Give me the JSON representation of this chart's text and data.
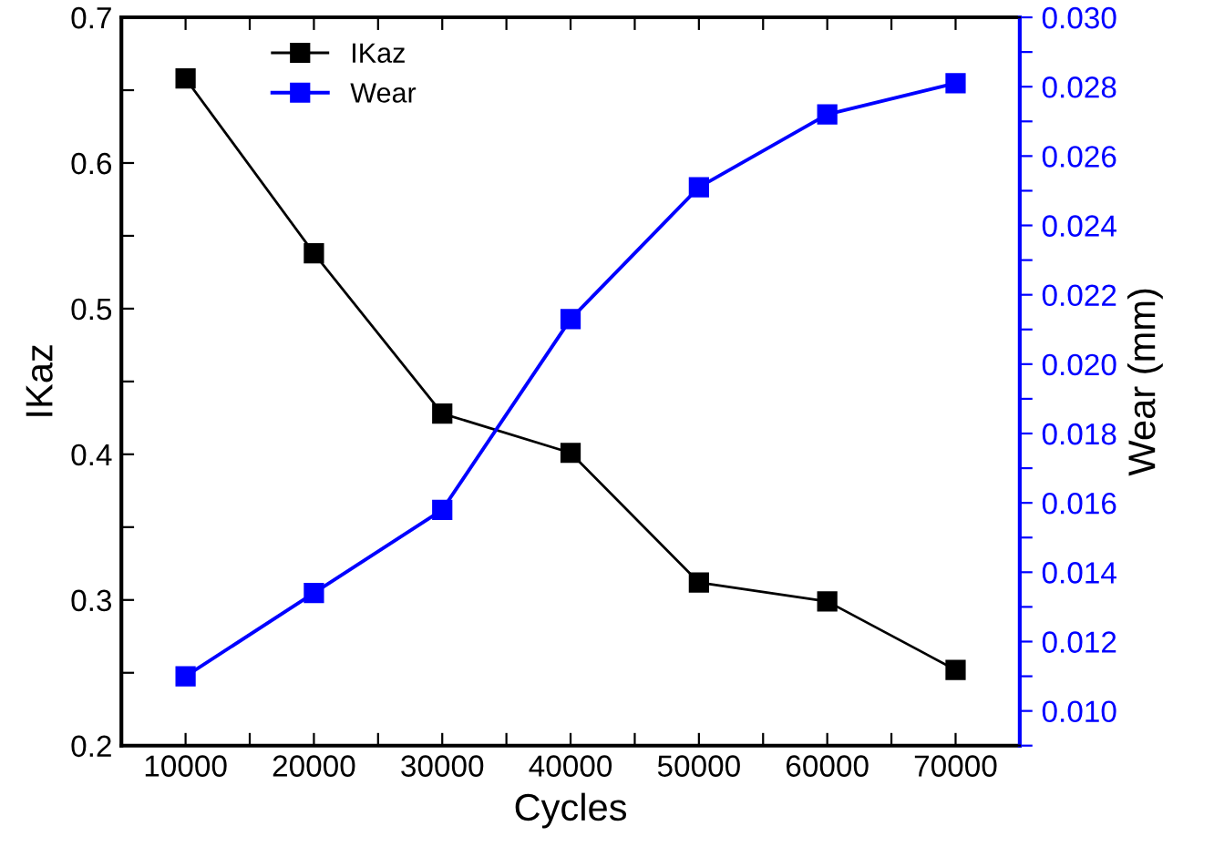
{
  "chart_data": {
    "type": "line",
    "xlabel": "Cycles",
    "ylabel": "IKaz",
    "y2label": "Wear (mm)",
    "x": [
      10000,
      20000,
      30000,
      40000,
      50000,
      60000,
      70000
    ],
    "series": [
      {
        "name": "IKaz",
        "color": "#000000",
        "values": [
          0.658,
          0.538,
          0.428,
          0.401,
          0.312,
          0.299,
          0.252
        ]
      },
      {
        "name": "Wear",
        "color": "#0000ff",
        "axis": "y2",
        "values": [
          0.011,
          0.0134,
          0.0158,
          0.0213,
          0.0251,
          0.0272,
          0.0281
        ]
      }
    ],
    "xlim": [
      5000,
      75000
    ],
    "xticks": [
      {
        "value": 5000,
        "label": null
      },
      10000,
      {
        "value": 15000,
        "label": null
      },
      20000,
      {
        "value": 25000,
        "label": null
      },
      30000,
      {
        "value": 35000,
        "label": null
      },
      40000,
      {
        "value": 45000,
        "label": null
      },
      50000,
      {
        "value": 55000,
        "label": null
      },
      60000,
      {
        "value": 65000,
        "label": null
      },
      70000,
      {
        "value": 75000,
        "label": null
      }
    ],
    "ylim": [
      0.2,
      0.7
    ],
    "yticks": [
      {
        "value": 0.2,
        "label": "0.2"
      },
      {
        "value": 0.25,
        "label": null
      },
      {
        "value": 0.3,
        "label": "0.3"
      },
      {
        "value": 0.35,
        "label": null
      },
      {
        "value": 0.4,
        "label": "0.4"
      },
      {
        "value": 0.45,
        "label": null
      },
      {
        "value": 0.5,
        "label": "0.5"
      },
      {
        "value": 0.55,
        "label": null
      },
      {
        "value": 0.6,
        "label": "0.6"
      },
      {
        "value": 0.65,
        "label": null
      },
      {
        "value": 0.7,
        "label": "0.7"
      }
    ],
    "y2lim": [
      0.009,
      0.03
    ],
    "y2ticks": [
      {
        "value": 0.009,
        "label": null
      },
      {
        "value": 0.01,
        "label": "0.010"
      },
      {
        "value": 0.011,
        "label": null
      },
      {
        "value": 0.012,
        "label": "0.012"
      },
      {
        "value": 0.013,
        "label": null
      },
      {
        "value": 0.014,
        "label": "0.014"
      },
      {
        "value": 0.015,
        "label": null
      },
      {
        "value": 0.016,
        "label": "0.016"
      },
      {
        "value": 0.017,
        "label": null
      },
      {
        "value": 0.018,
        "label": "0.018"
      },
      {
        "value": 0.019,
        "label": null
      },
      {
        "value": 0.02,
        "label": "0.020"
      },
      {
        "value": 0.021,
        "label": null
      },
      {
        "value": 0.022,
        "label": "0.022"
      },
      {
        "value": 0.023,
        "label": null
      },
      {
        "value": 0.024,
        "label": "0.024"
      },
      {
        "value": 0.025,
        "label": null
      },
      {
        "value": 0.026,
        "label": "0.026"
      },
      {
        "value": 0.027,
        "label": null
      },
      {
        "value": 0.028,
        "label": "0.028"
      },
      {
        "value": 0.029,
        "label": null
      },
      {
        "value": 0.03,
        "label": "0.030"
      }
    ],
    "marker": "square",
    "line_style": "solid",
    "legend": "top left",
    "grid": false
  }
}
